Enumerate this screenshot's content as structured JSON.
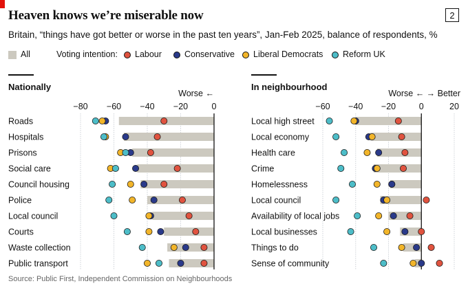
{
  "header": {
    "title": "Heaven knows we’re miserable now",
    "figure_number": "2",
    "subtitle": "Britain, “things have got better or worse in the past ten years”, Jan-Feb 2025, balance of respondents, %"
  },
  "legend": {
    "all_label": "All",
    "voting_label": "Voting intention:",
    "parties": [
      {
        "key": "labour",
        "name": "Labour",
        "color": "#e0533f"
      },
      {
        "key": "conservative",
        "name": "Conservative",
        "color": "#2a3a8a"
      },
      {
        "key": "libdem",
        "name": "Liberal Democrats",
        "color": "#f2b52a"
      },
      {
        "key": "reform",
        "name": "Reform UK",
        "color": "#4dbdc8"
      }
    ]
  },
  "footer": {
    "source": "Source: Public First, Independent Commission on Neighbourhoods"
  },
  "chart_data": [
    {
      "type": "dot",
      "title": "Nationally",
      "axis_annotation": "Worse ←",
      "xlim": [
        -80,
        0
      ],
      "x_ticks": [
        -80,
        -60,
        -40,
        -20,
        0
      ],
      "x_tick_labels": [
        "−80",
        "−60",
        "−40",
        "−20",
        "0"
      ],
      "grid": true,
      "categories": [
        "Roads",
        "Hospitals",
        "Prisons",
        "Social care",
        "Council housing",
        "Police",
        "Local council",
        "Courts",
        "Waste collection",
        "Public transport"
      ],
      "series": [
        {
          "name": "All",
          "values": [
            -57,
            -54,
            -49,
            -46,
            -44,
            -40,
            -37,
            -30,
            -28,
            -27
          ]
        },
        {
          "name": "Labour",
          "values": [
            -30,
            -34,
            -38,
            -22,
            -30,
            -19,
            -15,
            -11,
            -6,
            -6
          ]
        },
        {
          "name": "Conservative",
          "values": [
            -65,
            -53,
            -50,
            -47,
            -42,
            -36,
            -38,
            -32,
            -17,
            -20
          ]
        },
        {
          "name": "Liberal Democrats",
          "values": [
            -67,
            -65,
            -56,
            -62,
            -50,
            -49,
            -39,
            -39,
            -24,
            -40
          ]
        },
        {
          "name": "Reform UK",
          "values": [
            -71,
            -66,
            -53,
            -59,
            -61,
            -63,
            -60,
            -52,
            -43,
            -33
          ]
        }
      ]
    },
    {
      "type": "dot",
      "title": "In neighbourhood",
      "axis_annotation": "Worse ← → Better",
      "xlim": [
        -60,
        20
      ],
      "x_ticks": [
        -60,
        -40,
        -20,
        0,
        20
      ],
      "x_tick_labels": [
        "−60",
        "−40",
        "−20",
        "0",
        "20"
      ],
      "grid": true,
      "categories": [
        "Local high street",
        "Local economy",
        "Health care",
        "Crime",
        "Homelessness",
        "Local council",
        "Availability of local jobs",
        "Local businesses",
        "Things to do",
        "Sense of community"
      ],
      "series": [
        {
          "name": "All",
          "values": [
            -40,
            -31,
            -27,
            -29,
            -19,
            -25,
            -20,
            -13,
            -11,
            -4
          ]
        },
        {
          "name": "Labour",
          "values": [
            -14,
            -12,
            -10,
            -11,
            -18,
            3,
            -7,
            0,
            6,
            11
          ]
        },
        {
          "name": "Conservative",
          "values": [
            -40,
            -32,
            -26,
            -28,
            -18,
            -23,
            -17,
            -10,
            -3,
            0
          ]
        },
        {
          "name": "Liberal Democrats",
          "values": [
            -41,
            -30,
            -33,
            -27,
            -27,
            -21,
            -26,
            -21,
            -12,
            -5
          ]
        },
        {
          "name": "Reform UK",
          "values": [
            -56,
            -52,
            -47,
            -49,
            -42,
            -52,
            -39,
            -43,
            -29,
            -23
          ]
        }
      ]
    }
  ]
}
